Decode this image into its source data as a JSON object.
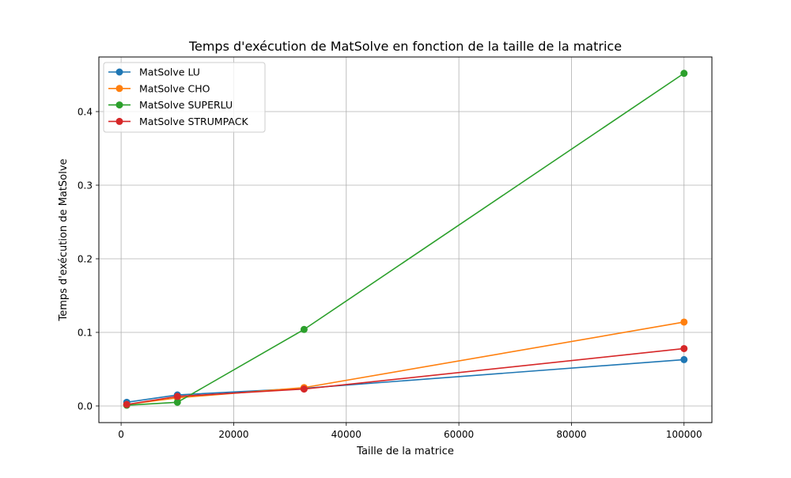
{
  "chart_data": {
    "type": "line",
    "title": "Temps d'exécution de MatSolve en fonction de la taille de la matrice",
    "xlabel": "Taille de la matrice",
    "ylabel": "Temps d'exécution de MatSolve",
    "xlim": [
      -3950,
      104950
    ],
    "ylim": [
      -0.0226,
      0.4742
    ],
    "xticks": [
      0,
      20000,
      40000,
      60000,
      80000,
      100000
    ],
    "xtick_labels": [
      "0",
      "20000",
      "40000",
      "60000",
      "80000",
      "100000"
    ],
    "yticks": [
      0.0,
      0.1,
      0.2,
      0.3,
      0.4
    ],
    "ytick_labels": [
      "0.0",
      "0.1",
      "0.2",
      "0.3",
      "0.4"
    ],
    "grid": true,
    "legend_position": "top-left",
    "x": [
      1000,
      10000,
      32500,
      100000
    ],
    "series": [
      {
        "name": "MatSolve LU",
        "color": "#1f77b4",
        "values": [
          0.005,
          0.015,
          0.024,
          0.063
        ]
      },
      {
        "name": "MatSolve CHO",
        "color": "#ff7f0e",
        "values": [
          0.002,
          0.011,
          0.025,
          0.114
        ]
      },
      {
        "name": "MatSolve SUPERLU",
        "color": "#2ca02c",
        "values": [
          0.001,
          0.005,
          0.104,
          0.452
        ]
      },
      {
        "name": "MatSolve STRUMPACK",
        "color": "#d62728",
        "values": [
          0.002,
          0.013,
          0.023,
          0.078
        ]
      }
    ]
  }
}
